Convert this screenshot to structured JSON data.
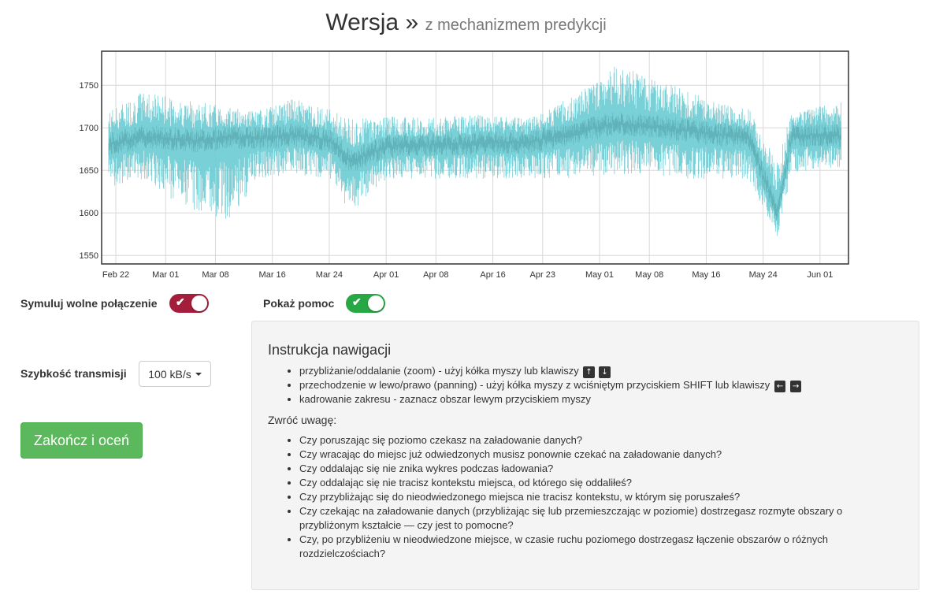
{
  "title": {
    "main": "Wersja »",
    "sub": "z mechanizmem predykcji"
  },
  "chart_data": {
    "type": "area",
    "title": "",
    "xlabel": "",
    "ylabel": "",
    "x_ticks": [
      "Feb 22",
      "Mar 01",
      "Mar 08",
      "Mar 16",
      "Mar 24",
      "Apr 01",
      "Apr 08",
      "Apr 16",
      "Apr 23",
      "May 01",
      "May 08",
      "May 16",
      "May 24",
      "Jun 01"
    ],
    "y_ticks": [
      1550,
      1600,
      1650,
      1700,
      1750
    ],
    "ylim": [
      1540,
      1790
    ],
    "xlim": [
      "2015-02-20",
      "2015-06-05"
    ],
    "grid": true,
    "series": [
      {
        "values": [
          {
            "x": "2015-02-21",
            "mean": 1680,
            "min": 1630,
            "max": 1720
          },
          {
            "x": "2015-02-26",
            "mean": 1690,
            "min": 1640,
            "max": 1745
          },
          {
            "x": "2015-03-02",
            "mean": 1687,
            "min": 1615,
            "max": 1735
          },
          {
            "x": "2015-03-06",
            "mean": 1685,
            "min": 1600,
            "max": 1730
          },
          {
            "x": "2015-03-10",
            "mean": 1689,
            "min": 1590,
            "max": 1725
          },
          {
            "x": "2015-03-14",
            "mean": 1688,
            "min": 1640,
            "max": 1720
          },
          {
            "x": "2015-03-19",
            "mean": 1692,
            "min": 1645,
            "max": 1735
          },
          {
            "x": "2015-03-24",
            "mean": 1686,
            "min": 1640,
            "max": 1722
          },
          {
            "x": "2015-03-27",
            "mean": 1660,
            "min": 1600,
            "max": 1710
          },
          {
            "x": "2015-04-01",
            "mean": 1678,
            "min": 1640,
            "max": 1715
          },
          {
            "x": "2015-04-07",
            "mean": 1680,
            "min": 1640,
            "max": 1712
          },
          {
            "x": "2015-04-14",
            "mean": 1682,
            "min": 1640,
            "max": 1715
          },
          {
            "x": "2015-04-21",
            "mean": 1683,
            "min": 1640,
            "max": 1712
          },
          {
            "x": "2015-04-28",
            "mean": 1695,
            "min": 1640,
            "max": 1740
          },
          {
            "x": "2015-05-03",
            "mean": 1705,
            "min": 1645,
            "max": 1775
          },
          {
            "x": "2015-05-08",
            "mean": 1702,
            "min": 1645,
            "max": 1760
          },
          {
            "x": "2015-05-13",
            "mean": 1697,
            "min": 1640,
            "max": 1745
          },
          {
            "x": "2015-05-18",
            "mean": 1692,
            "min": 1640,
            "max": 1730
          },
          {
            "x": "2015-05-22",
            "mean": 1688,
            "min": 1640,
            "max": 1722
          },
          {
            "x": "2015-05-26",
            "mean": 1600,
            "min": 1570,
            "max": 1660
          },
          {
            "x": "2015-05-28",
            "mean": 1690,
            "min": 1645,
            "max": 1720
          },
          {
            "x": "2015-06-01",
            "mean": 1692,
            "min": 1650,
            "max": 1725
          },
          {
            "x": "2015-06-04",
            "mean": 1690,
            "min": 1650,
            "max": 1730
          }
        ]
      }
    ],
    "colors": {
      "band": "#6ccbd3",
      "core": "#4a9a9c",
      "grid": "#d8d8d8",
      "frame": "#333333"
    }
  },
  "controls": {
    "slow_connection_label": "Symuluj wolne połączenie",
    "slow_connection_on": true,
    "show_help_label": "Pokaż pomoc",
    "show_help_on": true,
    "speed_label": "Szybkość transmisji",
    "speed_value": "100 kB/s",
    "finish_button": "Zakończ i oceń"
  },
  "help": {
    "title": "Instrukcja nawigacji",
    "nav_items": [
      "przybliżanie/oddalanie (zoom) - użyj kółka myszy lub klawiszy",
      "przechodzenie w lewo/prawo (panning) - użyj kółka myszy z wciśniętym przyciskiem SHIFT lub klawiszy",
      "kadrowanie zakresu - zaznacz obszar lewym przyciskiem myszy"
    ],
    "keys_zoom": [
      "↑",
      "↓"
    ],
    "keys_pan": [
      "←",
      "→"
    ],
    "note": "Zwróć uwagę:",
    "questions": [
      "Czy poruszając się poziomo czekasz na załadowanie danych?",
      "Czy wracając do miejsc już odwiedzonych musisz ponownie czekać na załadowanie danych?",
      "Czy oddalając się nie znika wykres podczas ładowania?",
      "Czy oddalając się nie tracisz kontekstu miejsca, od którego się oddaliłeś?",
      "Czy przybliżając się do nieodwiedzonego miejsca nie tracisz kontekstu, w którym się poruszałeś?",
      "Czy czekając na załadowanie danych (przybliżając się lub przemieszczając w poziomie) dostrzegasz rozmyte obszary o przybliżonym kształcie — czy jest to pomocne?",
      "Czy, po przybliżeniu w nieodwiedzone miejsce, w czasie ruchu poziomego dostrzegasz łączenie obszarów o różnych rozdzielczościach?"
    ]
  }
}
